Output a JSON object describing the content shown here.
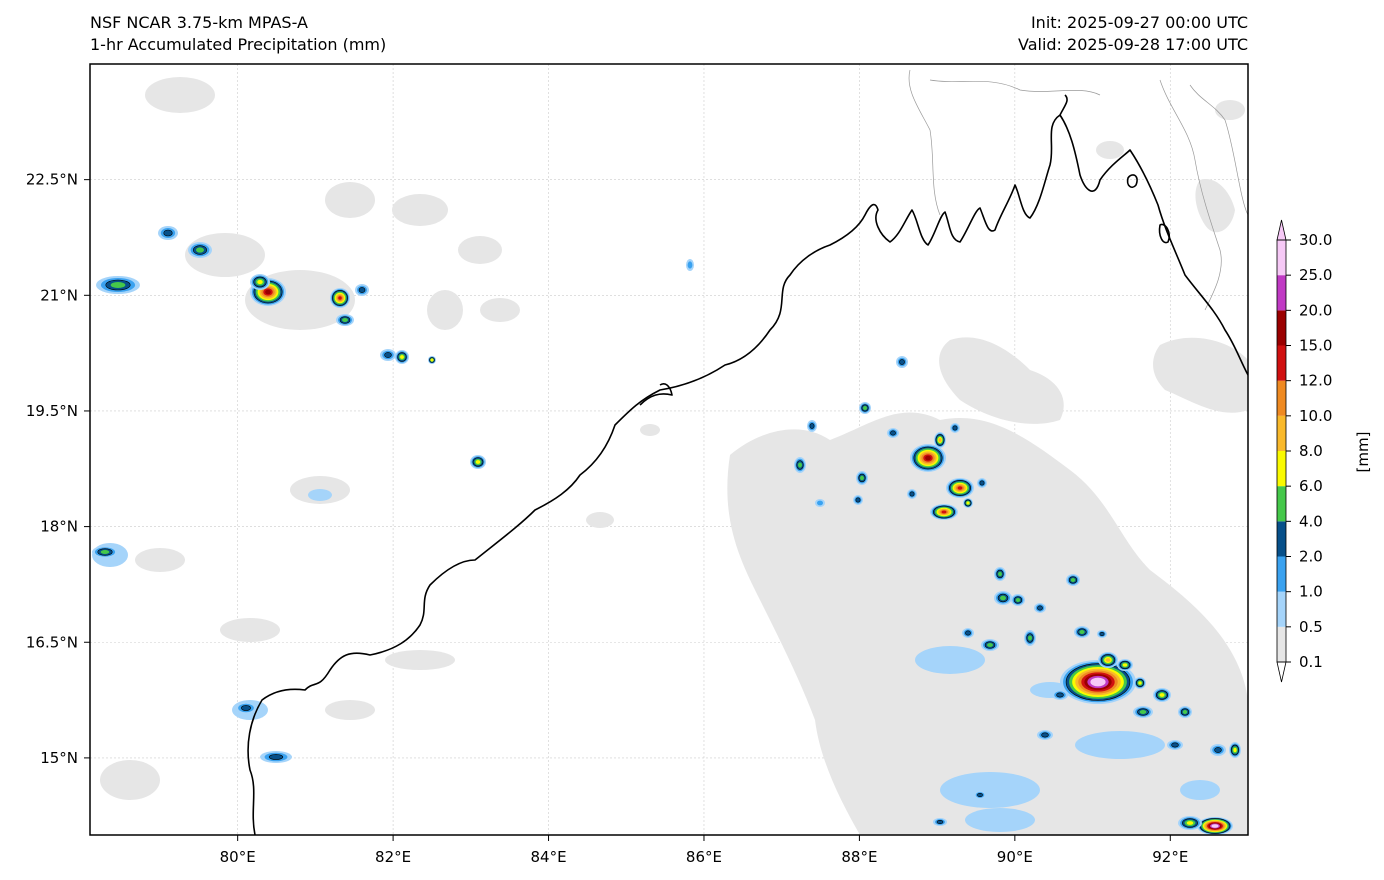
{
  "header": {
    "model": "NSF NCAR 3.75-km MPAS-A",
    "field": "1-hr Accumulated Precipitation (mm)",
    "init": "Init: 2025-09-27 00:00 UTC",
    "valid": "Valid: 2025-09-28 17:00 UTC"
  },
  "map": {
    "lon_range": [
      78.1,
      93.0
    ],
    "lat_range": [
      14.0,
      24.0
    ],
    "lon_ticks": [
      "80°E",
      "82°E",
      "84°E",
      "86°E",
      "88°E",
      "90°E",
      "92°E"
    ],
    "lon_tick_values": [
      80,
      82,
      84,
      86,
      88,
      90,
      92
    ],
    "lat_ticks": [
      "22.5°N",
      "21°N",
      "19.5°N",
      "18°N",
      "16.5°N",
      "15°N"
    ],
    "lat_tick_values": [
      22.5,
      21,
      19.5,
      18,
      16.5,
      15
    ],
    "gridlines": true
  },
  "colorbar": {
    "unit_label": "[mm]",
    "levels": [
      "0.1",
      "0.5",
      "1.0",
      "2.0",
      "4.0",
      "6.0",
      "8.0",
      "10.0",
      "12.0",
      "15.0",
      "20.0",
      "25.0",
      "30.0"
    ],
    "colors": [
      "#e6e6e6",
      "#a5d4fa",
      "#3aa2f0",
      "#07508a",
      "#45c84a",
      "#fafa00",
      "#f9b92b",
      "#ef8a22",
      "#d01010",
      "#9a0000",
      "#c03ac4",
      "#f6c9f6"
    ],
    "extend": "both"
  },
  "features": {
    "coastline_color": "#000000",
    "border_color": "#999999",
    "light_rain_color": "#e6e6e6"
  }
}
